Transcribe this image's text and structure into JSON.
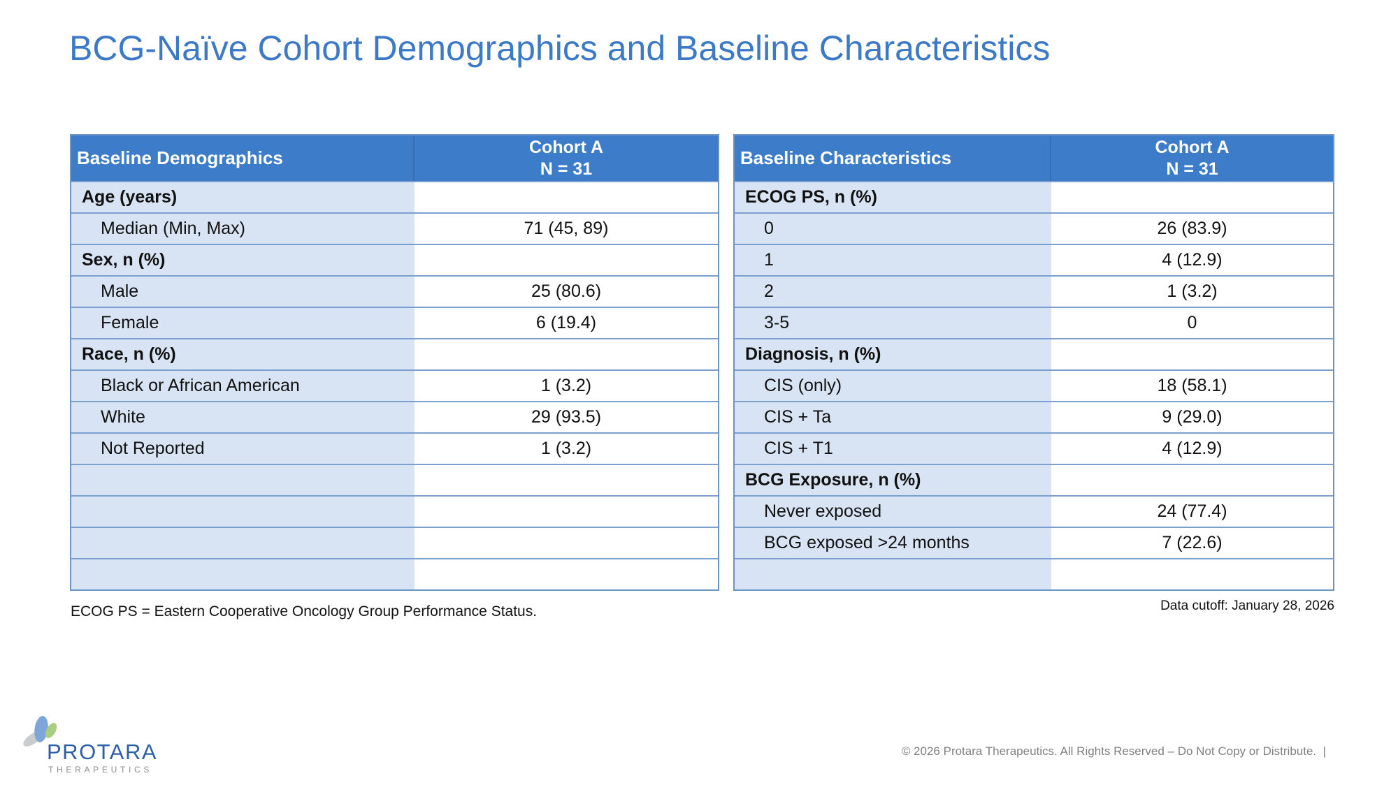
{
  "page": {
    "title": "BCG-Naïve Cohort Demographics and Baseline Characteristics",
    "footnote": "ECOG PS = Eastern Cooperative Oncology Group Performance Status.",
    "data_cutoff": "Data cutoff: January 28, 2026",
    "copyright": "© 2026 Protara Therapeutics. All Rights Reserved – Do Not Copy or Distribute.  |"
  },
  "logo": {
    "name": "PROTARA",
    "subtext": "THERAPEUTICS",
    "wordmark_color": "#2D5FA6",
    "subtext_color": "#8C8C8C",
    "leaf_colors": {
      "gray": "#C9CDCD",
      "blue": "#7FA6D8",
      "green": "#A9CE7F"
    }
  },
  "colors": {
    "title_blue": "#3C7AC8",
    "table_header_blue": "#3D7CC8",
    "row_label_blue": "#D8E4F3",
    "row_line_blue": "#7BA0CF",
    "table_outer_border": "#6C95C6",
    "copyright_gray": "#808080"
  },
  "tables": [
    {
      "name": "baseline-demographics",
      "header": {
        "title": "Baseline Demographics",
        "cohort_line1": "Cohort A",
        "cohort_line2": "N = 31"
      },
      "rows": [
        {
          "type": "category",
          "label": "Age (years)",
          "value": ""
        },
        {
          "type": "item",
          "label": "Median (Min, Max)",
          "value": "71 (45, 89)"
        },
        {
          "type": "category",
          "label": "Sex, n (%)",
          "value": ""
        },
        {
          "type": "item",
          "label": "Male",
          "value": "25 (80.6)"
        },
        {
          "type": "item",
          "label": "Female",
          "value": "6 (19.4)"
        },
        {
          "type": "category",
          "label": "Race, n (%)",
          "value": ""
        },
        {
          "type": "item",
          "label": "Black or African American",
          "value": "1 (3.2)"
        },
        {
          "type": "item",
          "label": "White",
          "value": "29 (93.5)"
        },
        {
          "type": "item",
          "label": "Not Reported",
          "value": "1 (3.2)"
        },
        {
          "type": "empty",
          "label": "",
          "value": ""
        },
        {
          "type": "empty",
          "label": "",
          "value": ""
        },
        {
          "type": "empty",
          "label": "",
          "value": ""
        },
        {
          "type": "empty",
          "label": "",
          "value": ""
        }
      ]
    },
    {
      "name": "baseline-characteristics",
      "header": {
        "title": "Baseline Characteristics",
        "cohort_line1": "Cohort A",
        "cohort_line2": "N = 31"
      },
      "rows": [
        {
          "type": "category",
          "label": "ECOG PS, n (%)",
          "value": ""
        },
        {
          "type": "item",
          "label": "0",
          "value": "26 (83.9)"
        },
        {
          "type": "item",
          "label": "1",
          "value": "4 (12.9)"
        },
        {
          "type": "item",
          "label": "2",
          "value": "1 (3.2)"
        },
        {
          "type": "item",
          "label": "3-5",
          "value": "0"
        },
        {
          "type": "category",
          "label": "Diagnosis, n (%)",
          "value": ""
        },
        {
          "type": "item",
          "label": "CIS (only)",
          "value": "18 (58.1)"
        },
        {
          "type": "item",
          "label": "CIS + Ta",
          "value": "9 (29.0)"
        },
        {
          "type": "item",
          "label": "CIS + T1",
          "value": "4 (12.9)"
        },
        {
          "type": "category",
          "label": "BCG Exposure, n (%)",
          "value": ""
        },
        {
          "type": "item",
          "label": "Never exposed",
          "value": "24 (77.4)"
        },
        {
          "type": "item",
          "label": "BCG exposed >24 months",
          "value": "7 (22.6)"
        },
        {
          "type": "empty",
          "label": "",
          "value": ""
        }
      ]
    }
  ]
}
